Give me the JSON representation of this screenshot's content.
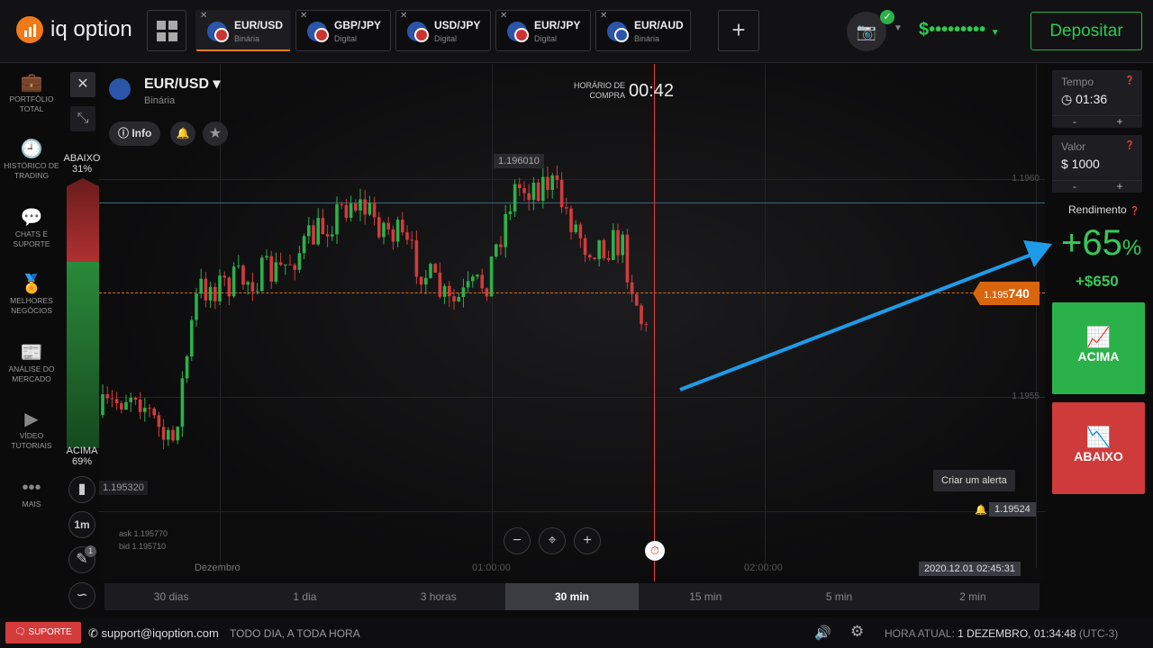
{
  "header": {
    "logo": "iq option",
    "tabs": [
      {
        "pair": "EUR/USD",
        "type": "Binária",
        "active": true
      },
      {
        "pair": "GBP/JPY",
        "type": "Digital"
      },
      {
        "pair": "USD/JPY",
        "type": "Digital"
      },
      {
        "pair": "EUR/JPY",
        "type": "Digital"
      },
      {
        "pair": "EUR/AUD",
        "type": "Binária"
      }
    ],
    "balance": "$•••••••••",
    "deposit": "Depositar"
  },
  "sidebar": [
    {
      "icon": "briefcase-icon",
      "label": "PORTFÓLIO TOTAL"
    },
    {
      "icon": "history-icon",
      "label": "HISTÓRICO DE TRADING"
    },
    {
      "icon": "chat-icon",
      "label": "CHATS E SUPORTE"
    },
    {
      "icon": "medal-icon",
      "label": "MELHORES NEGÓCIOS"
    },
    {
      "icon": "news-icon",
      "label": "ANÁLISE DO MERCADO"
    },
    {
      "icon": "play-icon",
      "label": "VÍDEO TUTORIAIS"
    },
    {
      "icon": "more-icon",
      "label": "MAIS"
    }
  ],
  "asset": {
    "pair": "EUR/USD",
    "type": "Binária",
    "info": "Info"
  },
  "sentiment": {
    "down_label": "ABAIXO",
    "down_pct": "31%",
    "up_label": "ACIMA",
    "up_pct": "69%",
    "down_fraction": 0.31
  },
  "chart": {
    "purchase_label": "HORÁRIO DE COMPRA",
    "countdown": "00:42",
    "high": "1.196010",
    "low": "1.195320",
    "price_prefix": "1.195",
    "price_suffix": "740",
    "y_ticks": [
      "1.1960",
      "1.1955"
    ],
    "x_ticks": [
      "Dezembro",
      "01:00:00",
      "02:00:00"
    ],
    "ask": "ask 1.195770",
    "bid": "bid 1.195710",
    "timestamp": "2020.12.01 02:45:31",
    "alert_tooltip": "Criar um alerta",
    "alert_price": "1.19524",
    "timeframe": "1m",
    "drawing_badge": "1"
  },
  "timeframes": [
    "30 dias",
    "1 dia",
    "3 horas",
    "30 min",
    "15 min",
    "5 min",
    "2 min"
  ],
  "active_timeframe": "30 min",
  "trade": {
    "time_label": "Tempo",
    "time": "01:36",
    "amount_label": "Valor",
    "amount": "$ 1000",
    "minus": "-",
    "plus": "+",
    "yield_label": "Rendimento",
    "yield": "+65",
    "yield_unit": "%",
    "profit": "+$650",
    "up": "ACIMA",
    "down": "ABAIXO"
  },
  "footer": {
    "support": "SUPORTE",
    "email": "support@iqoption.com",
    "hours": "TODO DIA, A TODA HORA",
    "time_label": "HORA ATUAL:",
    "time": "1 DEZEMBRO, 01:34:48",
    "tz": "(UTC-3)"
  },
  "colors": {
    "up": "#2bb14a",
    "down": "#d33b3b",
    "accent": "#f07a1a",
    "arrow": "#1e9be8"
  }
}
